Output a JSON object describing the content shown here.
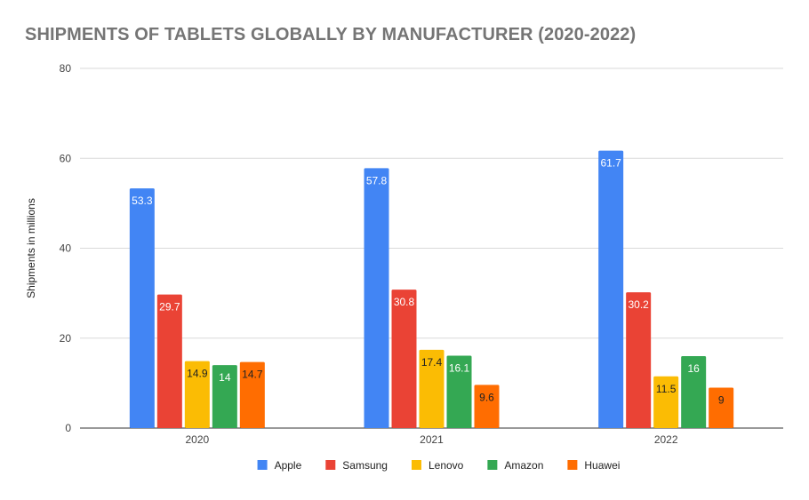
{
  "chart_data": {
    "type": "bar",
    "title": "SHIPMENTS OF TABLETS GLOBALLY BY MANUFACTURER (2020-2022)",
    "xlabel": "",
    "ylabel": "Shipments in millions",
    "categories": [
      "2020",
      "2021",
      "2022"
    ],
    "ylim": [
      0,
      80
    ],
    "yticks": [
      0,
      20,
      40,
      60,
      80
    ],
    "grid": true,
    "legend_position": "bottom",
    "series": [
      {
        "name": "Apple",
        "color": "#4285f4",
        "label_color": "#ffffff",
        "values": [
          53.3,
          57.8,
          61.7
        ]
      },
      {
        "name": "Samsung",
        "color": "#ea4335",
        "label_color": "#ffffff",
        "values": [
          29.7,
          30.8,
          30.2
        ]
      },
      {
        "name": "Lenovo",
        "color": "#fbbc04",
        "label_color": "#222222",
        "values": [
          14.9,
          17.4,
          11.5
        ]
      },
      {
        "name": "Amazon",
        "color": "#34a853",
        "label_color": "#ffffff",
        "values": [
          14,
          16.1,
          16
        ]
      },
      {
        "name": "Huawei",
        "color": "#ff6d01",
        "label_color": "#222222",
        "values": [
          14.7,
          9.6,
          9
        ]
      }
    ]
  }
}
